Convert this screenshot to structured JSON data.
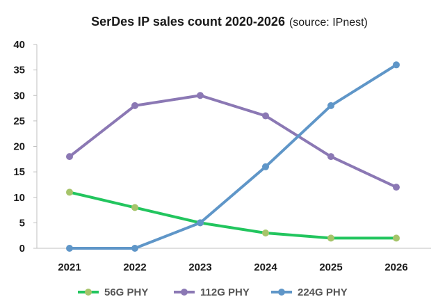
{
  "chart_data": {
    "type": "line",
    "title": "SerDes IP sales count 2020-2026",
    "subtitle": "(source: IPnest)",
    "xlabel": "",
    "ylabel": "",
    "categories": [
      "2021",
      "2022",
      "2023",
      "2024",
      "2025",
      "2026"
    ],
    "ylim": [
      0,
      40
    ],
    "yticks": [
      0,
      5,
      10,
      15,
      20,
      25,
      30,
      35,
      40
    ],
    "grid": false,
    "legend_position": "bottom",
    "series": [
      {
        "name": "56G PHY",
        "values": [
          11,
          8,
          5,
          3,
          2,
          2
        ],
        "line_color": "#22c55e",
        "marker_color": "#a6c46a"
      },
      {
        "name": "112G PHY",
        "values": [
          18,
          28,
          30,
          26,
          18,
          12
        ],
        "line_color": "#8b78b4",
        "marker_color": "#8b78b4"
      },
      {
        "name": "224G PHY",
        "values": [
          0,
          0,
          5,
          16,
          28,
          36
        ],
        "line_color": "#5f96c8",
        "marker_color": "#5f96c8"
      }
    ]
  }
}
